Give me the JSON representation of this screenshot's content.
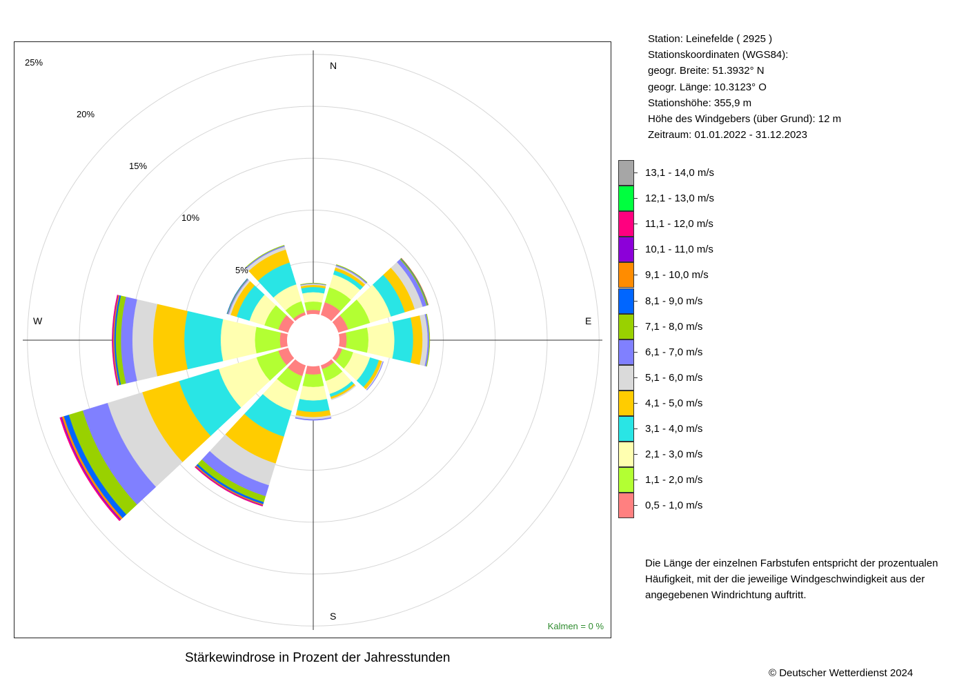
{
  "station": {
    "line1": "Station:  Leinefelde  ( 2925 )",
    "line2": "Stationskoordinaten (WGS84):",
    "line3": "geogr. Breite: 51.3932° N",
    "line4": "geogr. Länge: 10.3123° O",
    "line5": "Stationshöhe: 355,9 m",
    "line6": "Höhe des Windgebers (über Grund): 12 m",
    "line7": "Zeitraum: 01.01.2022 - 31.12.2023"
  },
  "description": "Die Länge der einzelnen Farbstufen entspricht der prozentualen Häufigkeit, mit der die jeweilige Windgeschwindigkeit aus der angegebenen Windrichtung auftritt.",
  "copyright": "© Deutscher Wetterdienst  2024",
  "calm_label": "Kalmen  =  0 %",
  "legend": [
    {
      "label": "13,1 - 14,0 m/s",
      "color": "#a6a6a6"
    },
    {
      "label": "12,1 - 13,0 m/s",
      "color": "#00ff3f"
    },
    {
      "label": "11,1 - 12,0 m/s",
      "color": "#ff007f"
    },
    {
      "label": "10,1 - 11,0 m/s",
      "color": "#8c00d9"
    },
    {
      "label": "9,1 - 10,0 m/s",
      "color": "#ff8c00"
    },
    {
      "label": "8,1 - 9,0 m/s",
      "color": "#0066ff"
    },
    {
      "label": "7,1 - 8,0 m/s",
      "color": "#99d100"
    },
    {
      "label": "6,1 - 7,0 m/s",
      "color": "#8080ff"
    },
    {
      "label": "5,1 - 6,0 m/s",
      "color": "#dadada"
    },
    {
      "label": "4,1 - 5,0 m/s",
      "color": "#ffcc00"
    },
    {
      "label": "3,1 - 4,0 m/s",
      "color": "#29e5e5"
    },
    {
      "label": "2,1 - 3,0 m/s",
      "color": "#ffffb0"
    },
    {
      "label": "1,1 - 2,0 m/s",
      "color": "#b3ff33"
    },
    {
      "label": "0,5 - 1,0 m/s",
      "color": "#ff8080"
    }
  ],
  "chart_data": {
    "type": "windrose",
    "title": "Stärkewindrose in Prozent der Jahresstunden",
    "unit": "%",
    "ring_labels": [
      "5%",
      "10%",
      "15%",
      "20%",
      "25%"
    ],
    "rings": [
      5,
      10,
      15,
      20,
      25
    ],
    "directions": [
      "N",
      "E",
      "S",
      "W"
    ],
    "sector_angles_deg": [
      0,
      30,
      60,
      90,
      120,
      150,
      180,
      210,
      240,
      270,
      300,
      330
    ],
    "speed_classes": [
      "0,5 - 1,0 m/s",
      "1,1 - 2,0 m/s",
      "2,1 - 3,0 m/s",
      "3,1 - 4,0 m/s",
      "4,1 - 5,0 m/s",
      "5,1 - 6,0 m/s",
      "6,1 - 7,0 m/s",
      "7,1 - 8,0 m/s",
      "8,1 - 9,0 m/s",
      "9,1 - 10,0 m/s",
      "10,1 - 11,0 m/s",
      "11,1 - 12,0 m/s",
      "12,1 - 13,0 m/s",
      "13,1 - 14,0 m/s"
    ],
    "sectors": [
      {
        "direction_deg": 0,
        "values": [
          0.4,
          0.8,
          0.9,
          0.5,
          0.2,
          0.1,
          0.05,
          0.03
        ]
      },
      {
        "direction_deg": 30,
        "values": [
          1.3,
          1.5,
          1.3,
          0.4,
          0.3,
          0.15,
          0.1,
          0.05
        ]
      },
      {
        "direction_deg": 60,
        "values": [
          1.0,
          2.2,
          2.1,
          1.4,
          1.0,
          0.8,
          0.4,
          0.1,
          0.05,
          0.03
        ]
      },
      {
        "direction_deg": 90,
        "values": [
          0.7,
          2.1,
          2.5,
          1.8,
          0.9,
          0.5,
          0.15,
          0.05
        ]
      },
      {
        "direction_deg": 120,
        "values": [
          0.4,
          1.1,
          1.7,
          0.9,
          0.3,
          0.1,
          0.05
        ]
      },
      {
        "direction_deg": 150,
        "values": [
          0.4,
          1.2,
          1.3,
          0.3,
          0.2,
          0.1
        ]
      },
      {
        "direction_deg": 180,
        "values": [
          0.8,
          1.2,
          1.3,
          1.1,
          0.5,
          0.2,
          0.1
        ]
      },
      {
        "direction_deg": 210,
        "values": [
          1.1,
          1.5,
          2.0,
          2.6,
          2.7,
          2.2,
          1.1,
          0.6,
          0.2,
          0.1,
          0.05,
          0.05
        ]
      },
      {
        "direction_deg": 240,
        "values": [
          1.0,
          2.2,
          3.8,
          4.0,
          3.7,
          3.5,
          2.5,
          1.4,
          0.5,
          0.2,
          0.1,
          0.1
        ]
      },
      {
        "direction_deg": 270,
        "values": [
          0.7,
          2.4,
          3.3,
          3.5,
          3.0,
          2.0,
          1.1,
          0.5,
          0.15,
          0.1,
          0.05,
          0.05
        ]
      },
      {
        "direction_deg": 300,
        "values": [
          1.0,
          1.4,
          1.5,
          1.3,
          0.6,
          0.2,
          0.1,
          0.05,
          0.03
        ]
      },
      {
        "direction_deg": 330,
        "values": [
          0.3,
          1.1,
          1.7,
          2.2,
          1.3,
          0.3,
          0.1,
          0.05
        ]
      }
    ]
  }
}
